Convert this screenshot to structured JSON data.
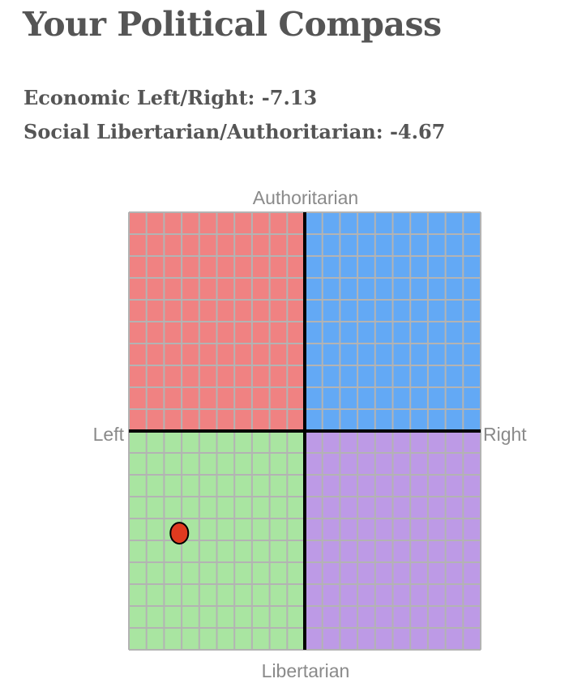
{
  "title": "Your Political Compass",
  "scores": [
    {
      "label": "Economic Left/Right:",
      "value": "-7.13"
    },
    {
      "label": "Social Libertarian/Authoritarian:",
      "value": "-4.67"
    }
  ],
  "colors": {
    "text": "#555555",
    "axis_label": "#8a8a8a",
    "authoritarian_left": "#f08282",
    "authoritarian_right": "#63a9f5",
    "libertarian_left": "#a9e5a1",
    "libertarian_right": "#bd9ae6",
    "grid": "#b3b3b3",
    "axis": "#000000",
    "marker": "#e03a1f"
  },
  "chart_data": {
    "type": "scatter",
    "title": "",
    "axis_labels": {
      "top": "Authoritarian",
      "bottom": "Libertarian",
      "left": "Left",
      "right": "Right"
    },
    "xlim": [
      -10,
      10
    ],
    "ylim": [
      -10,
      10
    ],
    "grid": true,
    "grid_step": 1,
    "quadrants": [
      {
        "name": "authoritarian-left",
        "color": "#f08282"
      },
      {
        "name": "authoritarian-right",
        "color": "#63a9f5"
      },
      {
        "name": "libertarian-left",
        "color": "#a9e5a1"
      },
      {
        "name": "libertarian-right",
        "color": "#bd9ae6"
      }
    ],
    "points": [
      {
        "x": -7.13,
        "y": -4.67
      }
    ]
  }
}
